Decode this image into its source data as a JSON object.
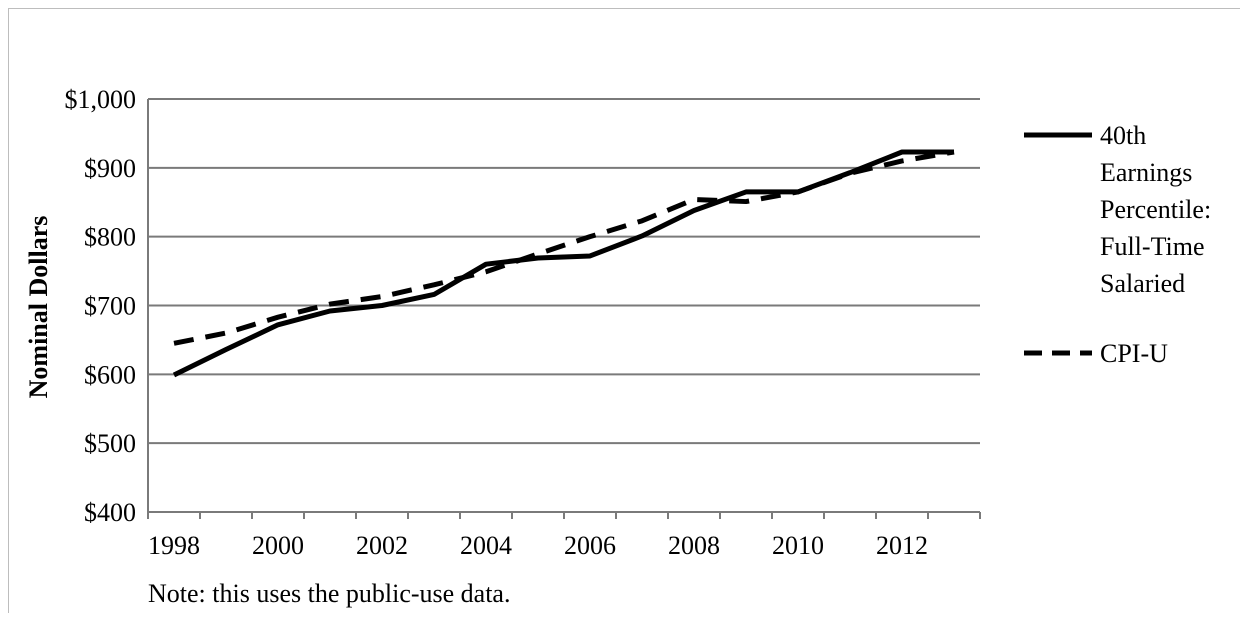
{
  "chart_data": {
    "type": "line",
    "xlabel": "",
    "ylabel": "Nominal Dollars",
    "ylim": [
      400,
      1000
    ],
    "xlim": [
      1998,
      2013
    ],
    "y_ticks": [
      400,
      500,
      600,
      700,
      800,
      900,
      1000
    ],
    "y_tick_labels": [
      "$400",
      "$500",
      "$600",
      "$700",
      "$800",
      "$900",
      "$1,000"
    ],
    "x_ticks": [
      1998,
      2000,
      2002,
      2004,
      2006,
      2008,
      2010,
      2012
    ],
    "x_tick_labels": [
      "1998",
      "2000",
      "2002",
      "2004",
      "2006",
      "2008",
      "2010",
      "2012"
    ],
    "grid": true,
    "legend_position": "right",
    "series": [
      {
        "name": "40th Earnings Percentile: Full-Time Salaried",
        "legend_lines": [
          "40th",
          "Earnings",
          "Percentile:",
          "Full-Time",
          "Salaried"
        ],
        "style": "solid",
        "color": "#000000",
        "x": [
          1998,
          1999,
          2000,
          2001,
          2002,
          2003,
          2004,
          2005,
          2006,
          2007,
          2008,
          2009,
          2010,
          2011,
          2012,
          2013
        ],
        "values": [
          599,
          636,
          672,
          692,
          700,
          716,
          760,
          769,
          772,
          801,
          838,
          865,
          865,
          893,
          923,
          923
        ]
      },
      {
        "name": "CPI-U",
        "legend_lines": [
          "CPI-U"
        ],
        "style": "dashed",
        "color": "#000000",
        "x": [
          1998,
          1999,
          2000,
          2001,
          2002,
          2003,
          2004,
          2005,
          2006,
          2007,
          2008,
          2009,
          2010,
          2011,
          2012,
          2013
        ],
        "values": [
          645,
          660,
          683,
          702,
          713,
          730,
          749,
          775,
          800,
          823,
          854,
          851,
          865,
          892,
          910,
          923
        ]
      }
    ],
    "note": "Note: this uses the public-use data."
  }
}
